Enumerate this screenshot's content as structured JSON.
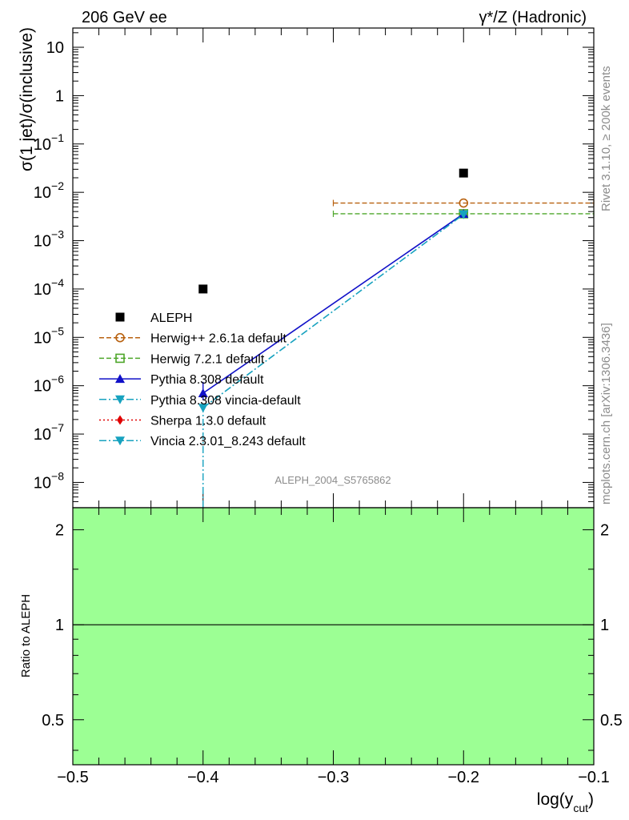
{
  "header": {
    "left": "206 GeV ee",
    "right": "γ*/Z (Hadronic)"
  },
  "side_text": {
    "rivet": "Rivet 3.1.10, ≥ 200k events",
    "mcplots": "mcplots.cern.ch [arXiv:1306.3436]"
  },
  "analysis_label": "ALEPH_2004_S5765862",
  "colors": {
    "aleph": "#000000",
    "herwigpp": "#b8610f",
    "herwig7": "#4ea62a",
    "pythia": "#1010c8",
    "pythia_vincia": "#17a2bf",
    "sherpa": "#e00000",
    "vincia": "#17a2bf",
    "ratio_band": "#9cff94"
  },
  "chart_data": [
    {
      "type": "scatter",
      "title": "",
      "ylabel": "σ(1 jet)/σ(inclusive)",
      "xlabel": "log(y_cut)",
      "yscale": "log",
      "xlim": [
        -0.5,
        -0.1
      ],
      "ylim": [
        3e-09,
        25
      ],
      "y_ticks": [
        {
          "label": "10^-8",
          "base": "10",
          "exp": "−8",
          "value": 1e-08
        },
        {
          "label": "10^-7",
          "base": "10",
          "exp": "−7",
          "value": 1e-07
        },
        {
          "label": "10^-6",
          "base": "10",
          "exp": "−6",
          "value": 1e-06
        },
        {
          "label": "10^-5",
          "base": "10",
          "exp": "−5",
          "value": 1e-05
        },
        {
          "label": "10^-4",
          "base": "10",
          "exp": "−4",
          "value": 0.0001
        },
        {
          "label": "10^-3",
          "base": "10",
          "exp": "−3",
          "value": 0.001
        },
        {
          "label": "10^-2",
          "base": "10",
          "exp": "−2",
          "value": 0.01
        },
        {
          "label": "10^-1",
          "base": "10",
          "exp": "−1",
          "value": 0.1
        },
        {
          "label": "1",
          "base": "1",
          "exp": "",
          "value": 1
        },
        {
          "label": "10",
          "base": "10",
          "exp": "",
          "value": 10
        }
      ],
      "series": [
        {
          "name": "ALEPH",
          "style": "aleph",
          "x": [
            -0.4,
            -0.2
          ],
          "y": [
            0.0001,
            0.025
          ]
        },
        {
          "name": "Herwig++ 2.6.1a default",
          "style": "herwigpp",
          "x": [
            -0.2
          ],
          "y": [
            0.006
          ],
          "xerr": [
            [
              -0.3,
              -0.1
            ]
          ]
        },
        {
          "name": "Herwig 7.2.1 default",
          "style": "herwig7",
          "x": [
            -0.2
          ],
          "y": [
            0.0036
          ],
          "xerr": [
            [
              -0.3,
              -0.1
            ]
          ]
        },
        {
          "name": "Pythia 8.308 default",
          "style": "pythia",
          "x": [
            -0.4,
            -0.2
          ],
          "y": [
            7e-07,
            0.0036
          ],
          "yerr_lo": [
            5e-07,
            0.0036
          ],
          "yerr_hi": [
            1.2e-06,
            0.0036
          ]
        },
        {
          "name": "Pythia 8.308 vincia-default",
          "style": "pythia_vincia",
          "x": [
            -0.4,
            -0.2
          ],
          "y": [
            3.5e-07,
            0.0035
          ],
          "yerr_lo": [
            3e-09,
            0.0035
          ],
          "yerr_hi": [
            3.5e-07,
            0.0035
          ]
        },
        {
          "name": "Sherpa 1.3.0 default",
          "style": "sherpa",
          "x": [],
          "y": []
        },
        {
          "name": "Vincia 2.3.01_8.243 default",
          "style": "vincia",
          "x": [],
          "y": []
        }
      ]
    },
    {
      "type": "area",
      "ylabel": "Ratio to ALEPH",
      "xlabel": "log(y_cut)",
      "yscale": "log",
      "xlim": [
        -0.5,
        -0.1
      ],
      "ylim": [
        0.36,
        2.35
      ],
      "y_ticks": [
        {
          "label": "0.5",
          "value": 0.5
        },
        {
          "label": "1",
          "value": 1
        },
        {
          "label": "2",
          "value": 2
        }
      ],
      "x_ticks": [
        {
          "label": "−0.5",
          "value": -0.5
        },
        {
          "label": "−0.4",
          "value": -0.4
        },
        {
          "label": "−0.3",
          "value": -0.3
        },
        {
          "label": "−0.2",
          "value": -0.2
        },
        {
          "label": "−0.1",
          "value": -0.1
        }
      ],
      "reference_line": 1,
      "band": {
        "name": "ALEPH uncertainty",
        "x_range": [
          -0.5,
          -0.1
        ],
        "y_range": [
          0.36,
          2.35
        ]
      }
    }
  ]
}
